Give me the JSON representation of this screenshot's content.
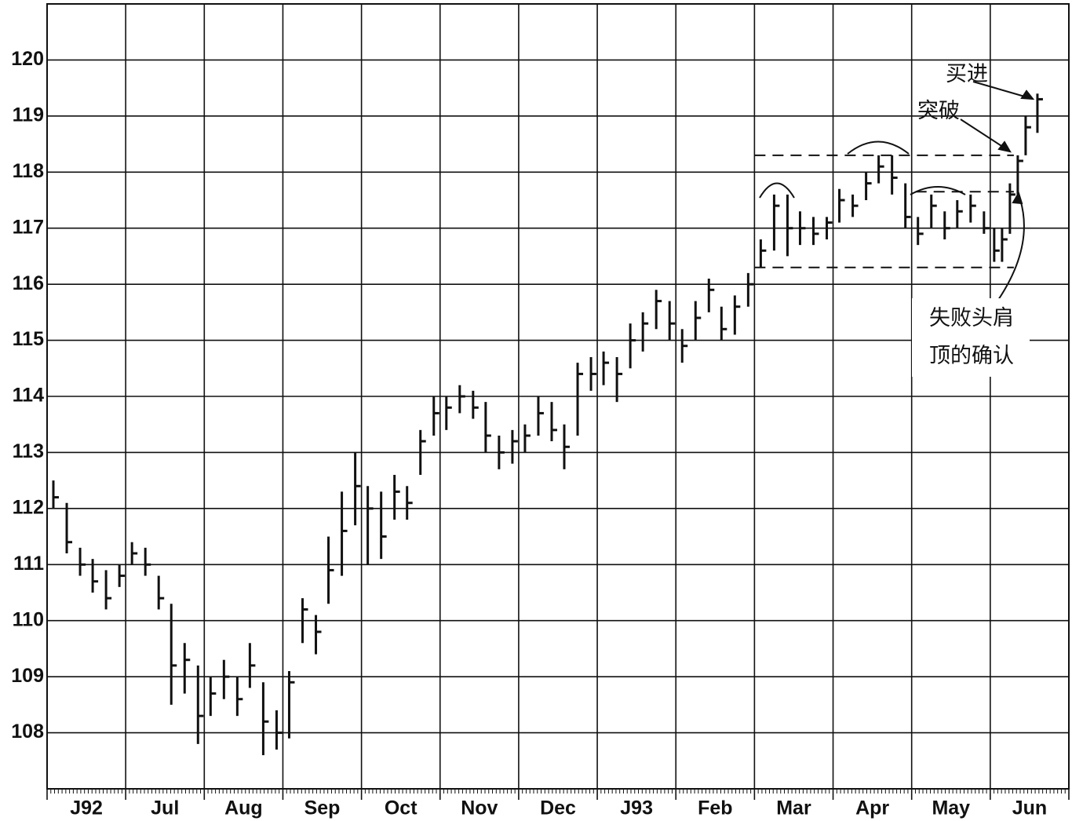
{
  "chart_data": {
    "type": "ohlc",
    "categories": [
      "J92",
      "Jul",
      "Aug",
      "Sep",
      "Oct",
      "Nov",
      "Dec",
      "J93",
      "Feb",
      "Mar",
      "Apr",
      "May",
      "Jun"
    ],
    "xlim": [
      0,
      13
    ],
    "xticks": [
      0,
      1,
      2,
      3,
      4,
      5,
      6,
      7,
      8,
      9,
      10,
      11,
      12,
      13
    ],
    "ylim": [
      107,
      121
    ],
    "yticks": [
      108,
      109,
      110,
      111,
      112,
      113,
      114,
      115,
      116,
      117,
      118,
      119,
      120
    ],
    "grid": true,
    "color": "#111111",
    "bars": {
      "x": [
        0.08,
        0.25,
        0.42,
        0.58,
        0.75,
        0.92,
        1.08,
        1.25,
        1.42,
        1.58,
        1.75,
        1.92,
        2.08,
        2.25,
        2.42,
        2.58,
        2.75,
        2.92,
        3.08,
        3.25,
        3.42,
        3.58,
        3.75,
        3.92,
        4.08,
        4.25,
        4.42,
        4.58,
        4.75,
        4.92,
        5.08,
        5.25,
        5.42,
        5.58,
        5.75,
        5.92,
        6.08,
        6.25,
        6.42,
        6.58,
        6.75,
        6.92,
        7.08,
        7.25,
        7.42,
        7.58,
        7.75,
        7.92,
        8.08,
        8.25,
        8.42,
        8.58,
        8.75,
        8.92,
        9.08,
        9.25,
        9.42,
        9.58,
        9.75,
        9.92,
        10.08,
        10.25,
        10.42,
        10.58,
        10.75,
        10.92,
        11.08,
        11.25,
        11.42,
        11.58,
        11.75,
        11.92,
        12.05,
        12.15,
        12.25,
        12.35,
        12.45,
        12.6
      ],
      "high": [
        112.5,
        112.1,
        111.3,
        111.1,
        110.9,
        111.0,
        111.4,
        111.3,
        110.8,
        110.3,
        109.6,
        109.2,
        109.0,
        109.3,
        109.0,
        109.6,
        108.9,
        108.4,
        109.1,
        110.4,
        110.1,
        111.5,
        112.3,
        113.0,
        112.4,
        112.3,
        112.6,
        112.4,
        113.4,
        114.0,
        114.0,
        114.2,
        114.1,
        113.9,
        113.3,
        113.4,
        113.5,
        114.0,
        113.9,
        113.5,
        114.6,
        114.7,
        114.8,
        114.7,
        115.3,
        115.5,
        115.9,
        115.7,
        115.2,
        115.7,
        116.1,
        115.6,
        115.8,
        116.2,
        116.8,
        117.6,
        117.6,
        117.3,
        117.2,
        117.2,
        117.7,
        117.6,
        118.0,
        118.3,
        118.3,
        117.8,
        117.2,
        117.6,
        117.3,
        117.5,
        117.6,
        117.3,
        117.0,
        117.0,
        117.8,
        118.3,
        119.0,
        119.4
      ],
      "low": [
        112.0,
        111.2,
        110.8,
        110.5,
        110.2,
        110.6,
        111.0,
        110.8,
        110.2,
        108.5,
        108.7,
        107.8,
        108.3,
        108.6,
        108.3,
        108.8,
        107.6,
        107.7,
        107.9,
        109.6,
        109.4,
        110.3,
        110.8,
        111.7,
        111.0,
        111.1,
        111.8,
        111.8,
        112.6,
        113.3,
        113.4,
        113.7,
        113.6,
        113.0,
        112.7,
        112.8,
        113.0,
        113.3,
        113.2,
        112.7,
        113.3,
        114.1,
        114.2,
        113.9,
        114.5,
        114.8,
        115.2,
        115.0,
        114.6,
        115.0,
        115.5,
        115.0,
        115.1,
        115.6,
        116.3,
        116.6,
        116.5,
        116.7,
        116.7,
        116.8,
        117.1,
        117.2,
        117.5,
        117.8,
        117.6,
        117.0,
        116.7,
        117.0,
        116.8,
        117.0,
        117.1,
        116.9,
        116.4,
        116.4,
        116.9,
        117.6,
        118.3,
        118.7
      ],
      "close": [
        112.2,
        111.4,
        111.0,
        110.7,
        110.4,
        110.8,
        111.2,
        111.0,
        110.4,
        109.2,
        109.3,
        108.3,
        108.7,
        109.0,
        108.6,
        109.2,
        108.2,
        108.0,
        108.9,
        110.2,
        109.8,
        110.9,
        111.6,
        112.4,
        112.0,
        111.5,
        112.3,
        112.1,
        113.2,
        113.7,
        113.8,
        114.0,
        113.8,
        113.3,
        113.0,
        113.2,
        113.3,
        113.7,
        113.4,
        113.1,
        114.4,
        114.4,
        114.6,
        114.4,
        115.0,
        115.3,
        115.7,
        115.3,
        114.9,
        115.4,
        115.9,
        115.2,
        115.6,
        116.0,
        116.6,
        117.4,
        117.0,
        117.0,
        116.9,
        117.1,
        117.5,
        117.4,
        117.8,
        118.1,
        117.9,
        117.2,
        116.9,
        117.4,
        117.0,
        117.3,
        117.4,
        117.0,
        116.6,
        116.8,
        117.6,
        118.2,
        118.8,
        119.3
      ]
    },
    "reference_lines": [
      {
        "value": 118.3,
        "xlim": [
          9,
          12.3
        ]
      },
      {
        "value": 117.65,
        "xlim": [
          11.05,
          12.3
        ]
      },
      {
        "value": 116.3,
        "xlim": [
          9,
          12.3
        ]
      }
    ],
    "annotations": [
      "买进",
      "突破",
      "失败头肩",
      "顶的确认"
    ]
  }
}
